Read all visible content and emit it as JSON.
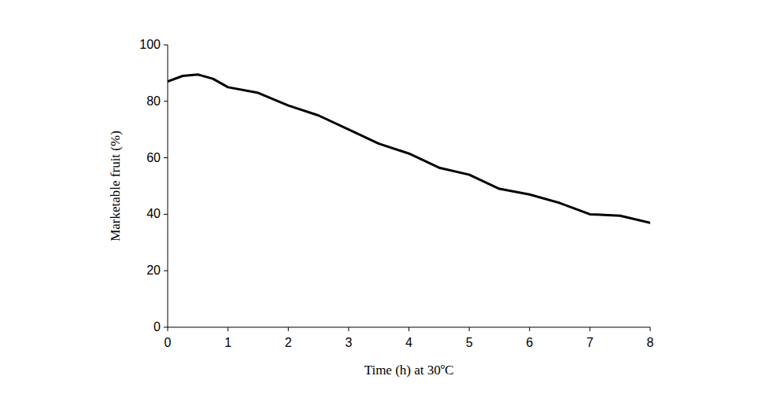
{
  "chart_data": {
    "type": "line",
    "x_label": "Time (h) at 30ºC",
    "y_label": "Marketable fruit (%)",
    "x": [
      0,
      0.25,
      0.5,
      0.75,
      1,
      1.5,
      2,
      2.5,
      3,
      3.5,
      4,
      4.5,
      5,
      5.5,
      6,
      6.5,
      7,
      7.5,
      8
    ],
    "values": [
      87,
      89,
      89.5,
      88,
      85,
      83,
      78.5,
      75,
      70,
      65,
      61.5,
      56.5,
      54,
      49,
      47,
      44,
      40,
      39.5,
      37
    ],
    "color": "#000000",
    "xlim": [
      0,
      8
    ],
    "xticks": [
      0,
      1,
      2,
      3,
      4,
      5,
      6,
      7,
      8
    ],
    "ylim": [
      0,
      100
    ],
    "yticks": [
      0,
      20,
      40,
      60,
      80,
      100
    ],
    "grid": false
  }
}
